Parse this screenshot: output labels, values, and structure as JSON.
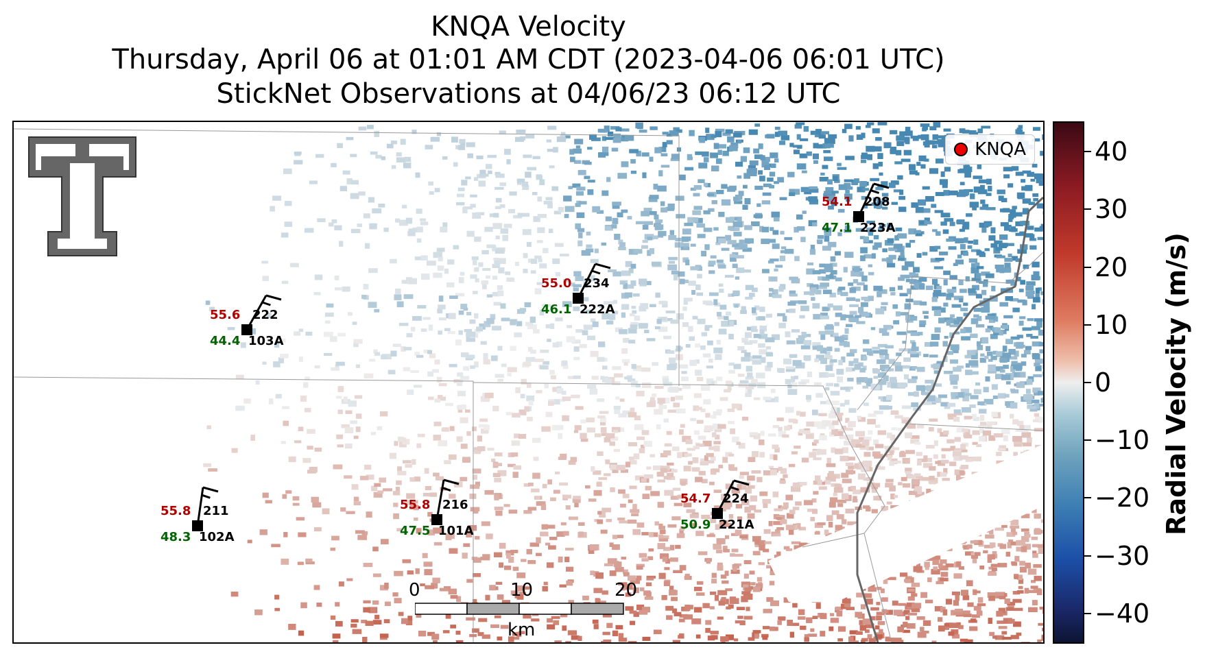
{
  "title": {
    "line1": "KNQA Velocity",
    "line2": "Thursday, April 06 at 01:01 AM CDT (2023-04-06 06:01 UTC)",
    "line3": "StickNet Observations at 04/06/23 06:12 UTC"
  },
  "legend": {
    "label": "KNQA",
    "color": "#e00000"
  },
  "colorbar": {
    "label": "Radial Velocity (m/s)",
    "range": [
      -45,
      45
    ],
    "ticks": [
      "40",
      "30",
      "20",
      "10",
      "0",
      "−10",
      "−20",
      "−30",
      "−40"
    ]
  },
  "scalebar": {
    "ticks": [
      "0",
      "10",
      "20"
    ],
    "unit": "km"
  },
  "stations": [
    {
      "id": "103A",
      "temp": "55.6",
      "dew": "44.4",
      "dir": "222"
    },
    {
      "id": "222A",
      "temp": "55.0",
      "dew": "46.1",
      "dir": "234"
    },
    {
      "id": "223A",
      "temp": "54.1",
      "dew": "47.1",
      "dir": "208"
    },
    {
      "id": "102A",
      "temp": "55.8",
      "dew": "48.3",
      "dir": "211"
    },
    {
      "id": "101A",
      "temp": "55.8",
      "dew": "47.5",
      "dir": "216"
    },
    {
      "id": "221A",
      "temp": "54.7",
      "dew": "50.9",
      "dir": "224"
    }
  ],
  "logo_icon": "texas-tech-double-t-logo"
}
